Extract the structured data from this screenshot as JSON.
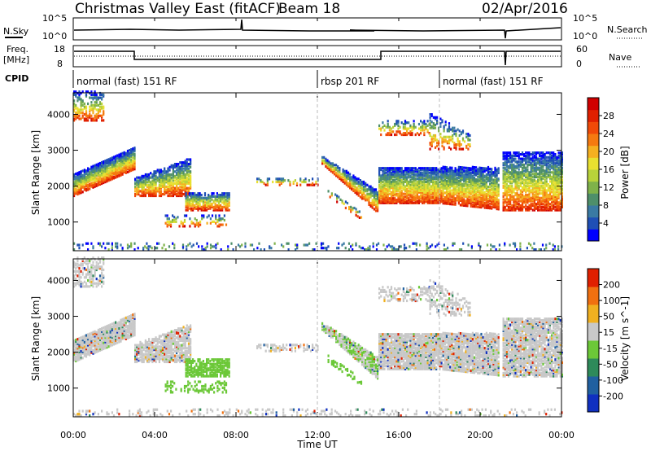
{
  "header": {
    "station": "Christmas Valley East (fitACF)",
    "beam": "Beam 18",
    "date": "02/Apr/2016"
  },
  "nsky_panel": {
    "left_label": "N.Sky",
    "left_ticks": [
      "10^5",
      "10^0"
    ],
    "right_ticks": [
      "10^5",
      "10^0"
    ],
    "right_label": "N.Search"
  },
  "freq_panel": {
    "left_label_line1": "Freq.",
    "left_label_line2": "[MHz]",
    "left_ticks": [
      "18",
      "8"
    ],
    "right_ticks": [
      "60",
      "0"
    ],
    "right_label": "Nave"
  },
  "cpid": {
    "label": "CPID",
    "segments": [
      {
        "start": 0,
        "end": 12,
        "name": "normal (fast) 151 RF"
      },
      {
        "start": 12,
        "end": 18,
        "name": "rbsp 201 RF"
      },
      {
        "start": 18,
        "end": 24,
        "name": "normal (fast) 151 RF"
      }
    ]
  },
  "chart_data": [
    {
      "type": "heatmap",
      "panel": "power",
      "ylabel": "Slant Range [km]",
      "yticks": [
        1000,
        2000,
        3000,
        4000
      ],
      "ylim": [
        200,
        4600
      ],
      "xlim": [
        0,
        24
      ],
      "colorbar_label": "Power [dB]",
      "colorbar_ticks": [
        "28",
        "24",
        "20",
        "16",
        "12",
        "8",
        "4"
      ],
      "colors": [
        "#0000ff",
        "#1f4fb5",
        "#3a7aa3",
        "#4e8f6a",
        "#7fb24a",
        "#b8d23a",
        "#e8e030",
        "#f5b020",
        "#f57a10",
        "#f04a08",
        "#e02000",
        "#d00000"
      ]
    },
    {
      "type": "heatmap",
      "panel": "velocity",
      "ylabel": "Slant Range [km]",
      "yticks": [
        1000,
        2000,
        3000,
        4000
      ],
      "ylim": [
        200,
        4600
      ],
      "xlim": [
        0,
        24
      ],
      "colorbar_label": "Velocity [m s^-1]",
      "colorbar_ticks": [
        "200",
        "100",
        "50",
        "15",
        "-15",
        "-50",
        "-100",
        "-200"
      ],
      "colors": [
        "#1030c0",
        "#2060a0",
        "#2e8a5a",
        "#6cc838",
        "#c8c8c8",
        "#f0b020",
        "#f07010",
        "#e02000"
      ]
    }
  ],
  "xaxis": {
    "ticks": [
      "00:00",
      "04:00",
      "08:00",
      "12:00",
      "16:00",
      "20:00",
      "00:00"
    ],
    "label": "Time UT"
  }
}
